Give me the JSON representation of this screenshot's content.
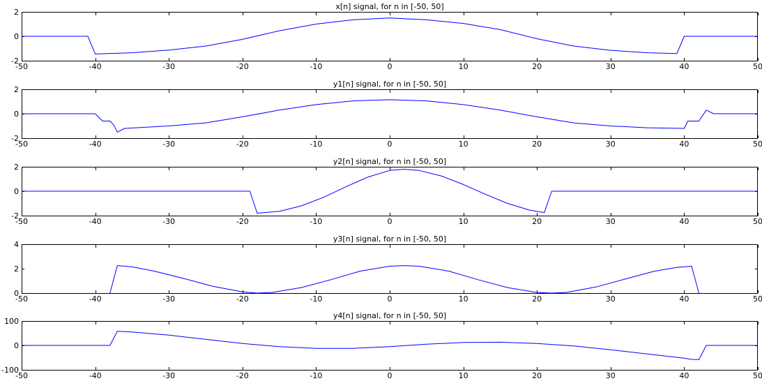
{
  "figure": {
    "colors": {
      "line": "#0000ff",
      "axes": "#000000",
      "background": "#ffffff"
    }
  },
  "chart_data": [
    {
      "type": "line",
      "title": "x[n] signal, for n in [-50, 50]",
      "xlim": [
        -50,
        50
      ],
      "ylim": [
        -2,
        2
      ],
      "xticks": [
        -50,
        -40,
        -30,
        -20,
        -10,
        0,
        10,
        20,
        30,
        40,
        50
      ],
      "yticks": [
        -2,
        0,
        2
      ],
      "grid": false,
      "series": [
        {
          "x": [
            -50,
            -41,
            -40,
            -35,
            -30,
            -25,
            -20,
            -15,
            -10,
            -5,
            0,
            5,
            10,
            15,
            20,
            25,
            30,
            35,
            39,
            40,
            50
          ],
          "y": [
            0,
            0,
            -1.45,
            -1.35,
            -1.13,
            -0.8,
            -0.25,
            0.45,
            1.0,
            1.35,
            1.5,
            1.35,
            1.05,
            0.55,
            -0.2,
            -0.8,
            -1.15,
            -1.35,
            -1.42,
            0,
            0
          ]
        }
      ]
    },
    {
      "type": "line",
      "title": "y1[n] signal, for n in [-50, 50]",
      "xlim": [
        -50,
        50
      ],
      "ylim": [
        -2,
        2
      ],
      "xticks": [
        -50,
        -40,
        -30,
        -20,
        -10,
        0,
        10,
        20,
        30,
        40,
        50
      ],
      "yticks": [
        -2,
        0,
        2
      ],
      "grid": false,
      "series": [
        {
          "x": [
            -50,
            -40,
            -39,
            -38,
            -37.5,
            -37,
            -36,
            -30,
            -25,
            -20,
            -15,
            -10,
            -5,
            0,
            5,
            10,
            15,
            20,
            25,
            30,
            35,
            40,
            40.5,
            41,
            42,
            43,
            44,
            50
          ],
          "y": [
            0,
            0,
            -0.6,
            -0.6,
            -0.9,
            -1.5,
            -1.2,
            -1.0,
            -0.75,
            -0.25,
            0.3,
            0.75,
            1.05,
            1.15,
            1.05,
            0.75,
            0.3,
            -0.25,
            -0.75,
            -1.0,
            -1.15,
            -1.2,
            -0.6,
            -0.6,
            -0.6,
            0.3,
            0,
            0
          ]
        }
      ]
    },
    {
      "type": "line",
      "title": "y2[n] signal, for n in [-50, 50]",
      "xlim": [
        -50,
        50
      ],
      "ylim": [
        -2,
        2
      ],
      "xticks": [
        -50,
        -40,
        -30,
        -20,
        -10,
        0,
        10,
        20,
        30,
        40,
        50
      ],
      "yticks": [
        -2,
        0,
        2
      ],
      "grid": false,
      "series": [
        {
          "x": [
            -50,
            -19,
            -18,
            -15,
            -12,
            -9,
            -6,
            -3,
            0,
            2,
            4,
            7,
            10,
            13,
            16,
            19,
            21,
            22,
            50
          ],
          "y": [
            0,
            0,
            -1.8,
            -1.65,
            -1.2,
            -0.5,
            0.35,
            1.15,
            1.7,
            1.8,
            1.7,
            1.25,
            0.55,
            -0.25,
            -1.0,
            -1.55,
            -1.75,
            0,
            0
          ]
        }
      ]
    },
    {
      "type": "line",
      "title": "y3[n] signal, for n in [-50, 50]",
      "xlim": [
        -50,
        50
      ],
      "ylim": [
        0,
        4
      ],
      "xticks": [
        -50,
        -40,
        -30,
        -20,
        -10,
        0,
        10,
        20,
        30,
        40,
        50
      ],
      "yticks": [
        0,
        2,
        4
      ],
      "grid": false,
      "series": [
        {
          "x": [
            -38,
            -37,
            -35,
            -32,
            -28,
            -24,
            -20,
            -18,
            -16,
            -12,
            -8,
            -4,
            0,
            2,
            4,
            8,
            12,
            16,
            20,
            22,
            24,
            28,
            32,
            36,
            39,
            41,
            42
          ],
          "y": [
            0,
            2.25,
            2.15,
            1.8,
            1.2,
            0.55,
            0.1,
            0.0,
            0.05,
            0.45,
            1.1,
            1.8,
            2.2,
            2.25,
            2.2,
            1.8,
            1.1,
            0.45,
            0.05,
            0.0,
            0.05,
            0.5,
            1.15,
            1.8,
            2.1,
            2.2,
            0
          ]
        }
      ]
    },
    {
      "type": "line",
      "title": "y4[n] signal, for n in [-50, 50]",
      "xlim": [
        -50,
        50
      ],
      "ylim": [
        -100,
        100
      ],
      "xticks": [
        -50,
        -40,
        -30,
        -20,
        -10,
        0,
        10,
        20,
        30,
        40,
        50
      ],
      "yticks": [
        -100,
        0,
        100
      ],
      "grid": false,
      "series": [
        {
          "x": [
            -50,
            -38,
            -37,
            -35,
            -30,
            -25,
            -20,
            -15,
            -10,
            -5,
            0,
            5,
            10,
            15,
            20,
            25,
            30,
            35,
            40,
            41,
            42,
            43,
            50
          ],
          "y": [
            0,
            0,
            58,
            55,
            42,
            25,
            8,
            -5,
            -12,
            -12,
            -5,
            5,
            12,
            13,
            8,
            -2,
            -18,
            -35,
            -52,
            -57,
            -58,
            0,
            0
          ]
        }
      ]
    }
  ]
}
